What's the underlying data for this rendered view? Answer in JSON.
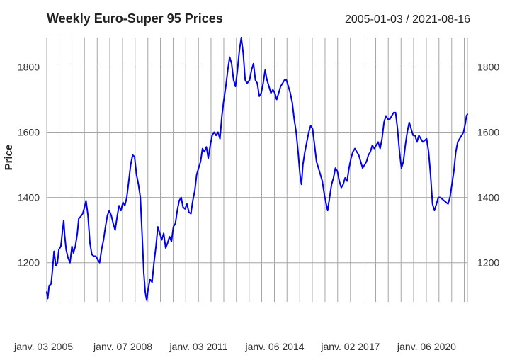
{
  "chart_data": {
    "type": "line",
    "title": "Weekly Euro-Super 95 Prices",
    "date_range": "2005-01-03 / 2021-08-16",
    "ylabel": "Price",
    "xlabel": "",
    "ylim": [
      1080,
      1890
    ],
    "xlim": [
      "2005-01-03",
      "2021-08-16"
    ],
    "yticks": [
      1200,
      1400,
      1600,
      1800
    ],
    "xtick_labels": [
      {
        "date": "2005-01-03",
        "label": "janv. 03 2005"
      },
      {
        "date": "2008-01-07",
        "label": "janv. 07 2008"
      },
      {
        "date": "2011-01-03",
        "label": "janv. 03 2011"
      },
      {
        "date": "2014-01-06",
        "label": "janv. 06 2014"
      },
      {
        "date": "2017-01-02",
        "label": "janv. 02 2017"
      },
      {
        "date": "2020-01-06",
        "label": "janv. 06 2020"
      }
    ],
    "grid": true,
    "line_color": "#0000ee",
    "series": [
      {
        "values": [
          [
            "2005-01-03",
            1110
          ],
          [
            "2005-01-17",
            1090
          ],
          [
            "2005-02-07",
            1130
          ],
          [
            "2005-03-07",
            1135
          ],
          [
            "2005-03-28",
            1180
          ],
          [
            "2005-04-18",
            1235
          ],
          [
            "2005-05-16",
            1190
          ],
          [
            "2005-06-06",
            1200
          ],
          [
            "2005-06-27",
            1240
          ],
          [
            "2005-07-25",
            1250
          ],
          [
            "2005-08-15",
            1290
          ],
          [
            "2005-09-05",
            1330
          ],
          [
            "2005-09-19",
            1285
          ],
          [
            "2005-10-10",
            1240
          ],
          [
            "2005-11-07",
            1215
          ],
          [
            "2005-12-05",
            1200
          ],
          [
            "2006-01-02",
            1250
          ],
          [
            "2006-01-23",
            1230
          ],
          [
            "2006-02-20",
            1250
          ],
          [
            "2006-03-20",
            1290
          ],
          [
            "2006-04-10",
            1335
          ],
          [
            "2006-05-01",
            1340
          ],
          [
            "2006-06-05",
            1350
          ],
          [
            "2006-07-03",
            1370
          ],
          [
            "2006-07-24",
            1390
          ],
          [
            "2006-08-21",
            1345
          ],
          [
            "2006-09-18",
            1260
          ],
          [
            "2006-10-16",
            1225
          ],
          [
            "2006-11-13",
            1220
          ],
          [
            "2006-12-11",
            1220
          ],
          [
            "2007-01-08",
            1210
          ],
          [
            "2007-02-05",
            1200
          ],
          [
            "2007-03-05",
            1240
          ],
          [
            "2007-04-02",
            1270
          ],
          [
            "2007-04-30",
            1310
          ],
          [
            "2007-05-28",
            1345
          ],
          [
            "2007-06-25",
            1360
          ],
          [
            "2007-07-23",
            1345
          ],
          [
            "2007-08-20",
            1320
          ],
          [
            "2007-09-17",
            1300
          ],
          [
            "2007-10-15",
            1340
          ],
          [
            "2007-11-12",
            1375
          ],
          [
            "2007-12-10",
            1360
          ],
          [
            "2008-01-07",
            1385
          ],
          [
            "2008-02-04",
            1375
          ],
          [
            "2008-03-03",
            1400
          ],
          [
            "2008-03-31",
            1450
          ],
          [
            "2008-04-28",
            1500
          ],
          [
            "2008-05-26",
            1530
          ],
          [
            "2008-06-23",
            1525
          ],
          [
            "2008-07-21",
            1470
          ],
          [
            "2008-08-18",
            1440
          ],
          [
            "2008-09-15",
            1400
          ],
          [
            "2008-10-13",
            1270
          ],
          [
            "2008-11-03",
            1170
          ],
          [
            "2008-11-24",
            1110
          ],
          [
            "2008-12-15",
            1085
          ],
          [
            "2009-01-05",
            1120
          ],
          [
            "2009-02-02",
            1150
          ],
          [
            "2009-03-02",
            1140
          ],
          [
            "2009-03-30",
            1200
          ],
          [
            "2009-04-27",
            1250
          ],
          [
            "2009-05-25",
            1310
          ],
          [
            "2009-06-22",
            1290
          ],
          [
            "2009-07-20",
            1270
          ],
          [
            "2009-08-17",
            1290
          ],
          [
            "2009-09-14",
            1245
          ],
          [
            "2009-10-12",
            1260
          ],
          [
            "2009-11-09",
            1280
          ],
          [
            "2009-12-07",
            1265
          ],
          [
            "2010-01-04",
            1310
          ],
          [
            "2010-02-01",
            1320
          ],
          [
            "2010-03-01",
            1360
          ],
          [
            "2010-03-29",
            1390
          ],
          [
            "2010-04-26",
            1400
          ],
          [
            "2010-05-24",
            1370
          ],
          [
            "2010-06-21",
            1365
          ],
          [
            "2010-07-19",
            1380
          ],
          [
            "2010-08-16",
            1355
          ],
          [
            "2010-09-13",
            1350
          ],
          [
            "2010-10-11",
            1390
          ],
          [
            "2010-11-08",
            1420
          ],
          [
            "2010-12-06",
            1470
          ],
          [
            "2011-01-03",
            1490
          ],
          [
            "2011-01-31",
            1510
          ],
          [
            "2011-02-28",
            1550
          ],
          [
            "2011-03-28",
            1540
          ],
          [
            "2011-04-25",
            1555
          ],
          [
            "2011-05-23",
            1520
          ],
          [
            "2011-06-20",
            1560
          ],
          [
            "2011-07-18",
            1590
          ],
          [
            "2011-08-15",
            1600
          ],
          [
            "2011-09-12",
            1590
          ],
          [
            "2011-10-10",
            1600
          ],
          [
            "2011-11-07",
            1580
          ],
          [
            "2011-12-05",
            1650
          ],
          [
            "2012-01-02",
            1700
          ],
          [
            "2012-01-30",
            1740
          ],
          [
            "2012-02-27",
            1790
          ],
          [
            "2012-03-26",
            1830
          ],
          [
            "2012-04-23",
            1810
          ],
          [
            "2012-05-21",
            1760
          ],
          [
            "2012-06-18",
            1740
          ],
          [
            "2012-07-16",
            1790
          ],
          [
            "2012-08-13",
            1850
          ],
          [
            "2012-09-10",
            1890
          ],
          [
            "2012-10-08",
            1840
          ],
          [
            "2012-11-05",
            1760
          ],
          [
            "2012-12-03",
            1750
          ],
          [
            "2013-01-07",
            1760
          ],
          [
            "2013-02-04",
            1790
          ],
          [
            "2013-03-04",
            1810
          ],
          [
            "2013-04-01",
            1760
          ],
          [
            "2013-04-29",
            1750
          ],
          [
            "2013-05-27",
            1710
          ],
          [
            "2013-06-24",
            1720
          ],
          [
            "2013-07-22",
            1750
          ],
          [
            "2013-08-19",
            1790
          ],
          [
            "2013-09-16",
            1760
          ],
          [
            "2013-10-14",
            1740
          ],
          [
            "2013-11-11",
            1720
          ],
          [
            "2013-12-09",
            1730
          ],
          [
            "2014-01-06",
            1720
          ],
          [
            "2014-02-03",
            1700
          ],
          [
            "2014-03-03",
            1720
          ],
          [
            "2014-03-31",
            1740
          ],
          [
            "2014-04-28",
            1750
          ],
          [
            "2014-05-26",
            1760
          ],
          [
            "2014-06-23",
            1760
          ],
          [
            "2014-07-21",
            1740
          ],
          [
            "2014-08-18",
            1720
          ],
          [
            "2014-09-15",
            1690
          ],
          [
            "2014-10-13",
            1640
          ],
          [
            "2014-11-10",
            1600
          ],
          [
            "2014-12-08",
            1540
          ],
          [
            "2015-01-05",
            1470
          ],
          [
            "2015-01-26",
            1440
          ],
          [
            "2015-02-16",
            1500
          ],
          [
            "2015-03-16",
            1540
          ],
          [
            "2015-04-13",
            1570
          ],
          [
            "2015-05-11",
            1600
          ],
          [
            "2015-06-08",
            1620
          ],
          [
            "2015-07-06",
            1610
          ],
          [
            "2015-08-03",
            1560
          ],
          [
            "2015-08-31",
            1510
          ],
          [
            "2015-09-28",
            1490
          ],
          [
            "2015-10-26",
            1470
          ],
          [
            "2015-11-23",
            1450
          ],
          [
            "2015-12-21",
            1410
          ],
          [
            "2016-01-18",
            1380
          ],
          [
            "2016-02-08",
            1360
          ],
          [
            "2016-03-07",
            1400
          ],
          [
            "2016-04-04",
            1440
          ],
          [
            "2016-05-02",
            1460
          ],
          [
            "2016-05-30",
            1490
          ],
          [
            "2016-06-27",
            1480
          ],
          [
            "2016-07-25",
            1450
          ],
          [
            "2016-08-22",
            1430
          ],
          [
            "2016-09-19",
            1440
          ],
          [
            "2016-10-17",
            1460
          ],
          [
            "2016-11-14",
            1450
          ],
          [
            "2016-12-12",
            1490
          ],
          [
            "2017-01-09",
            1520
          ],
          [
            "2017-02-06",
            1540
          ],
          [
            "2017-03-06",
            1550
          ],
          [
            "2017-04-03",
            1540
          ],
          [
            "2017-05-01",
            1530
          ],
          [
            "2017-05-29",
            1510
          ],
          [
            "2017-06-26",
            1490
          ],
          [
            "2017-07-24",
            1500
          ],
          [
            "2017-08-21",
            1510
          ],
          [
            "2017-09-18",
            1530
          ],
          [
            "2017-10-16",
            1540
          ],
          [
            "2017-11-13",
            1560
          ],
          [
            "2017-12-11",
            1550
          ],
          [
            "2018-01-08",
            1560
          ],
          [
            "2018-02-05",
            1570
          ],
          [
            "2018-03-05",
            1550
          ],
          [
            "2018-04-02",
            1580
          ],
          [
            "2018-04-30",
            1630
          ],
          [
            "2018-05-28",
            1650
          ],
          [
            "2018-06-25",
            1640
          ],
          [
            "2018-07-23",
            1640
          ],
          [
            "2018-08-20",
            1650
          ],
          [
            "2018-09-17",
            1660
          ],
          [
            "2018-10-15",
            1660
          ],
          [
            "2018-11-12",
            1610
          ],
          [
            "2018-12-10",
            1540
          ],
          [
            "2019-01-07",
            1490
          ],
          [
            "2019-02-04",
            1510
          ],
          [
            "2019-03-04",
            1560
          ],
          [
            "2019-04-01",
            1600
          ],
          [
            "2019-04-29",
            1630
          ],
          [
            "2019-05-27",
            1610
          ],
          [
            "2019-06-24",
            1590
          ],
          [
            "2019-07-22",
            1590
          ],
          [
            "2019-08-19",
            1570
          ],
          [
            "2019-09-16",
            1590
          ],
          [
            "2019-10-14",
            1580
          ],
          [
            "2019-11-11",
            1570
          ],
          [
            "2019-12-09",
            1575
          ],
          [
            "2020-01-06",
            1580
          ],
          [
            "2020-02-03",
            1540
          ],
          [
            "2020-03-02",
            1470
          ],
          [
            "2020-03-30",
            1380
          ],
          [
            "2020-04-27",
            1360
          ],
          [
            "2020-05-25",
            1380
          ],
          [
            "2020-06-22",
            1400
          ],
          [
            "2020-07-20",
            1400
          ],
          [
            "2020-08-17",
            1395
          ],
          [
            "2020-09-14",
            1390
          ],
          [
            "2020-10-12",
            1385
          ],
          [
            "2020-11-09",
            1380
          ],
          [
            "2020-12-07",
            1400
          ],
          [
            "2021-01-04",
            1440
          ],
          [
            "2021-02-01",
            1480
          ],
          [
            "2021-03-01",
            1540
          ],
          [
            "2021-03-29",
            1570
          ],
          [
            "2021-04-26",
            1580
          ],
          [
            "2021-05-24",
            1590
          ],
          [
            "2021-06-21",
            1600
          ],
          [
            "2021-07-19",
            1630
          ],
          [
            "2021-08-02",
            1650
          ],
          [
            "2021-08-16",
            1655
          ]
        ]
      }
    ]
  }
}
